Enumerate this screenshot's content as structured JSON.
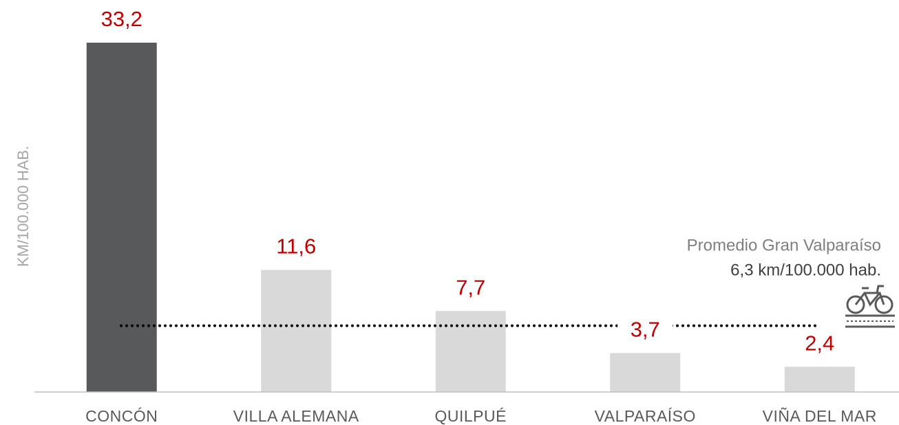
{
  "chart_data": {
    "type": "bar",
    "y_label": "KM/100.000 HAB.",
    "categories": [
      "CONCÓN",
      "VILLA ALEMANA",
      "QUILPUÉ",
      "VALPARAÍSO",
      "VIÑA DEL MAR"
    ],
    "values": [
      33.2,
      11.6,
      7.7,
      3.7,
      2.4
    ],
    "value_labels": [
      "33,2",
      "11,6",
      "7,7",
      "3,7",
      "2,4"
    ],
    "colors": [
      "#58595b",
      "#d9d9d9",
      "#d9d9d9",
      "#d9d9d9",
      "#d9d9d9"
    ],
    "label_color": "#c00000",
    "ylim": [
      0,
      35
    ],
    "reference": {
      "value": 6.3,
      "label": "Promedio Gran Valparaíso",
      "sublabel": "6,3 km/100.000 hab."
    }
  }
}
